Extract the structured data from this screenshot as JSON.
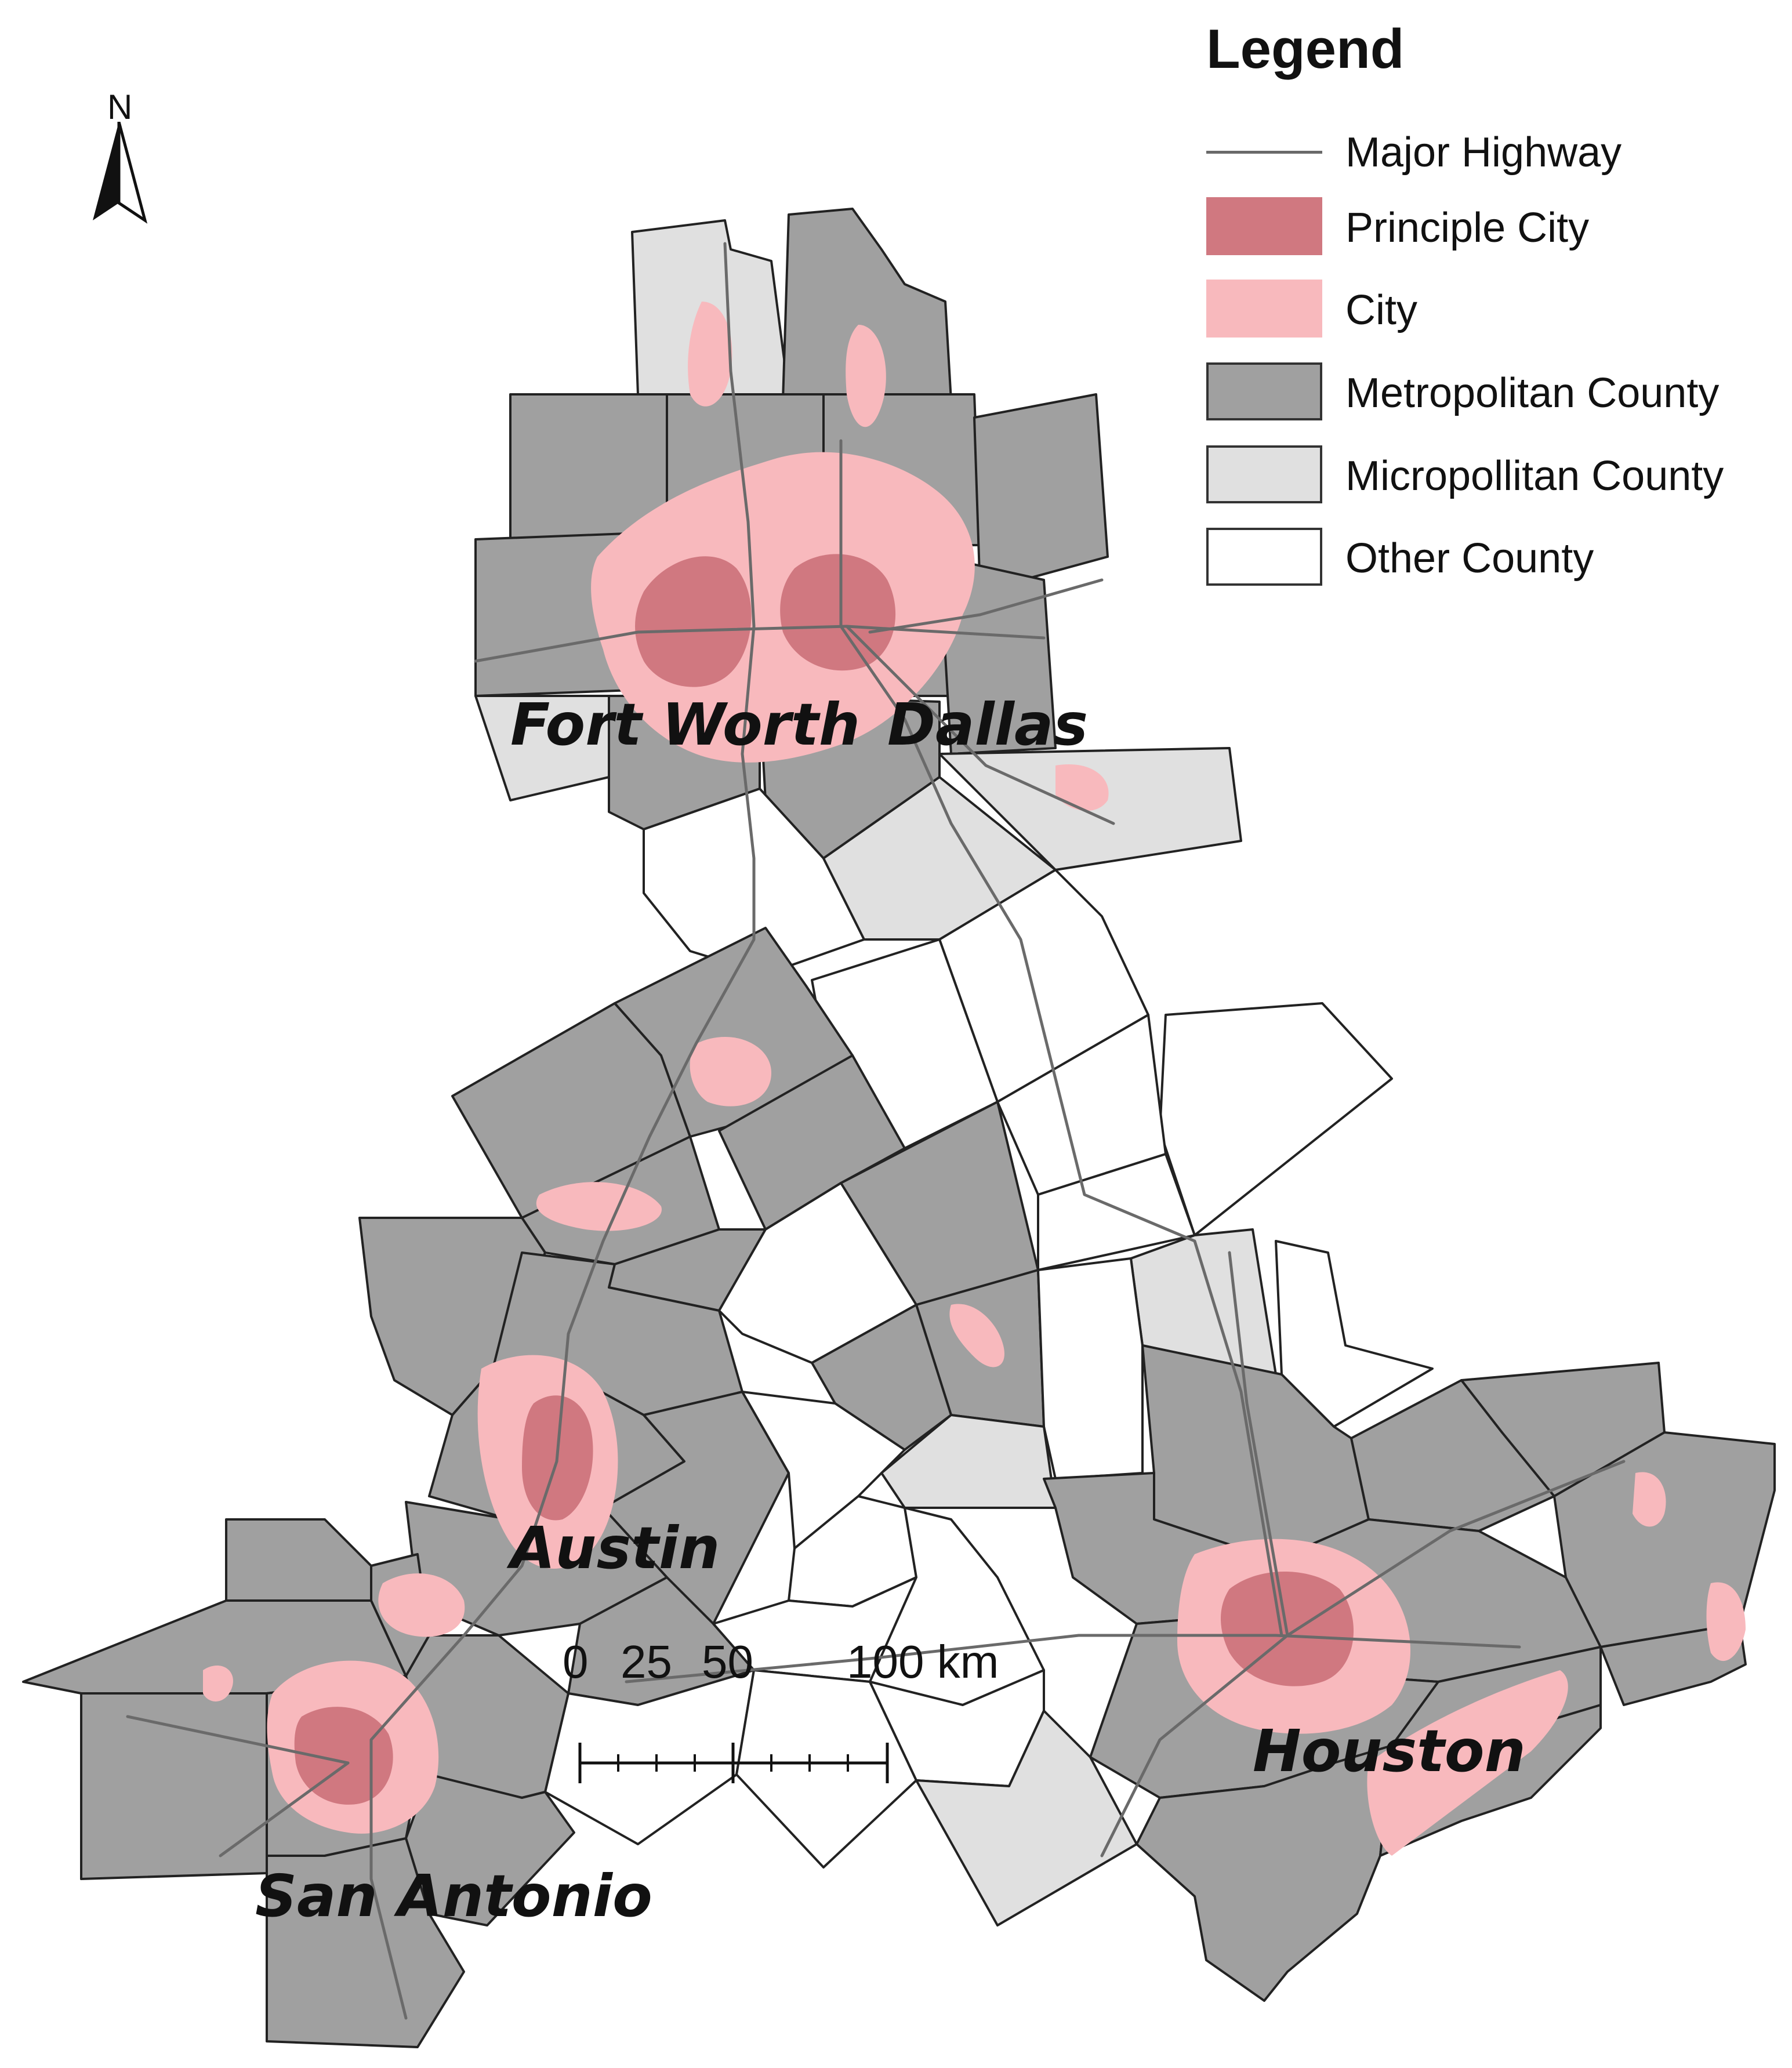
{
  "legend": {
    "title": "Legend",
    "items": [
      {
        "label": "Major Highway",
        "type": "line",
        "color": "#6a6a6a"
      },
      {
        "label": "Principle City",
        "type": "fill",
        "color": "#d07880"
      },
      {
        "label": "City",
        "type": "fill",
        "color": "#f8b9bd"
      },
      {
        "label": "Metropolitan County",
        "type": "fill",
        "color": "#a0a0a0"
      },
      {
        "label": "Micropollitan County",
        "type": "fill",
        "color": "#e0e0e0"
      },
      {
        "label": "Other County",
        "type": "fill",
        "color": "#ffffff"
      }
    ]
  },
  "north_arrow": {
    "letter": "N"
  },
  "cities": {
    "fort_worth": "Fort Worth",
    "dallas": "Dallas",
    "austin": "Austin",
    "san_antonio": "San Antonio",
    "houston": "Houston"
  },
  "scale_bar": {
    "labels": [
      "0",
      "25",
      "50",
      "100 km"
    ]
  }
}
